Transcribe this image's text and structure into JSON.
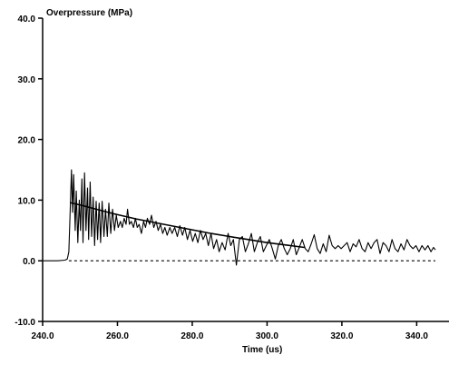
{
  "chart_data": {
    "type": "line",
    "ylabel": "Overpressure (MPa)",
    "xlabel": "Time (us)",
    "xlim": [
      240.0,
      345.0
    ],
    "ylim": [
      -10.0,
      40.0
    ],
    "x_ticks": [
      240.0,
      260.0,
      280.0,
      300.0,
      320.0,
      340.0
    ],
    "x_tick_labels": [
      "240.0",
      "260.0",
      "280.0",
      "300.0",
      "320.0",
      "340.0"
    ],
    "y_ticks": [
      -10.0,
      0.0,
      10.0,
      20.0,
      30.0,
      40.0
    ],
    "y_tick_labels": [
      "-10.0",
      "0.0",
      "10.0",
      "20.0",
      "30.0",
      "40.0"
    ],
    "grid": false,
    "line_color": "#000000",
    "series": [
      {
        "style": "solid-thin",
        "points": [
          [
            240.0,
            0.0
          ],
          [
            244.0,
            0.0
          ],
          [
            246.0,
            0.1
          ],
          [
            246.6,
            0.3
          ],
          [
            247.0,
            1.5
          ],
          [
            247.3,
            7.0
          ],
          [
            247.7,
            15.0
          ],
          [
            248.0,
            8.0
          ],
          [
            248.3,
            14.2
          ],
          [
            248.7,
            5.0
          ],
          [
            249.0,
            11.5
          ],
          [
            249.4,
            3.0
          ],
          [
            249.8,
            10.0
          ],
          [
            250.1,
            5.0
          ],
          [
            250.5,
            13.5
          ],
          [
            250.8,
            3.0
          ],
          [
            251.2,
            14.5
          ],
          [
            251.6,
            5.0
          ],
          [
            252.0,
            12.0
          ],
          [
            252.3,
            3.5
          ],
          [
            252.7,
            13.0
          ],
          [
            253.1,
            4.0
          ],
          [
            253.5,
            10.5
          ],
          [
            253.9,
            2.5
          ],
          [
            254.3,
            9.8
          ],
          [
            254.7,
            3.5
          ],
          [
            255.1,
            9.5
          ],
          [
            255.5,
            3.0
          ],
          [
            255.9,
            9.8
          ],
          [
            256.4,
            4.0
          ],
          [
            256.8,
            8.5
          ],
          [
            257.3,
            4.0
          ],
          [
            257.7,
            9.5
          ],
          [
            258.2,
            4.5
          ],
          [
            258.7,
            8.5
          ],
          [
            259.2,
            5.0
          ],
          [
            259.7,
            7.5
          ],
          [
            260.2,
            5.5
          ],
          [
            260.8,
            6.5
          ],
          [
            261.3,
            5.5
          ],
          [
            261.8,
            7.0
          ],
          [
            262.3,
            6.0
          ],
          [
            262.7,
            8.5
          ],
          [
            263.2,
            6.0
          ],
          [
            263.7,
            6.5
          ],
          [
            264.3,
            5.5
          ],
          [
            264.8,
            7.0
          ],
          [
            265.3,
            5.5
          ],
          [
            265.8,
            6.0
          ],
          [
            266.4,
            4.5
          ],
          [
            267.0,
            6.5
          ],
          [
            267.5,
            5.5
          ],
          [
            268.0,
            7.0
          ],
          [
            268.6,
            6.0
          ],
          [
            269.1,
            7.5
          ],
          [
            269.7,
            5.5
          ],
          [
            270.3,
            6.5
          ],
          [
            270.9,
            5.0
          ],
          [
            271.5,
            6.0
          ],
          [
            272.1,
            4.5
          ],
          [
            272.7,
            5.5
          ],
          [
            273.3,
            4.2
          ],
          [
            274.0,
            5.5
          ],
          [
            274.6,
            4.5
          ],
          [
            275.3,
            5.5
          ],
          [
            276.0,
            4.0
          ],
          [
            276.7,
            5.8
          ],
          [
            277.4,
            4.2
          ],
          [
            278.0,
            5.5
          ],
          [
            278.7,
            3.5
          ],
          [
            279.4,
            5.0
          ],
          [
            280.1,
            3.2
          ],
          [
            280.8,
            4.5
          ],
          [
            281.5,
            3.0
          ],
          [
            282.2,
            5.0
          ],
          [
            282.9,
            3.5
          ],
          [
            283.6,
            4.5
          ],
          [
            284.3,
            2.5
          ],
          [
            285.0,
            4.5
          ],
          [
            285.7,
            2.0
          ],
          [
            286.5,
            3.5
          ],
          [
            287.2,
            1.5
          ],
          [
            288.0,
            3.0
          ],
          [
            288.8,
            1.8
          ],
          [
            289.6,
            4.5
          ],
          [
            290.3,
            2.5
          ],
          [
            291.0,
            3.5
          ],
          [
            291.8,
            -0.7
          ],
          [
            292.6,
            3.5
          ],
          [
            293.4,
            4.0
          ],
          [
            294.2,
            1.5
          ],
          [
            295.0,
            2.8
          ],
          [
            295.8,
            4.5
          ],
          [
            296.6,
            1.5
          ],
          [
            297.4,
            3.0
          ],
          [
            298.2,
            4.0
          ],
          [
            299.0,
            1.5
          ],
          [
            299.8,
            2.5
          ],
          [
            300.6,
            3.5
          ],
          [
            301.4,
            2.0
          ],
          [
            302.2,
            0.3
          ],
          [
            303.0,
            2.5
          ],
          [
            303.8,
            3.5
          ],
          [
            304.6,
            2.0
          ],
          [
            305.4,
            1.0
          ],
          [
            306.2,
            2.0
          ],
          [
            307.0,
            3.5
          ],
          [
            307.8,
            1.0
          ],
          [
            308.6,
            2.2
          ],
          [
            309.4,
            3.5
          ],
          [
            310.2,
            2.0
          ],
          [
            311.0,
            1.5
          ],
          [
            311.8,
            2.8
          ],
          [
            312.6,
            4.3
          ],
          [
            313.4,
            2.0
          ],
          [
            314.2,
            1.2
          ],
          [
            315.0,
            2.8
          ],
          [
            315.8,
            1.5
          ],
          [
            316.6,
            4.2
          ],
          [
            317.4,
            2.5
          ],
          [
            318.2,
            2.0
          ],
          [
            319.0,
            2.5
          ],
          [
            319.8,
            2.0
          ],
          [
            320.6,
            2.5
          ],
          [
            321.4,
            3.0
          ],
          [
            322.2,
            1.5
          ],
          [
            323.0,
            2.8
          ],
          [
            323.8,
            2.3
          ],
          [
            324.6,
            3.5
          ],
          [
            325.4,
            2.0
          ],
          [
            326.2,
            1.5
          ],
          [
            327.0,
            3.0
          ],
          [
            327.8,
            2.0
          ],
          [
            328.6,
            3.0
          ],
          [
            329.4,
            3.5
          ],
          [
            330.2,
            1.2
          ],
          [
            331.0,
            3.0
          ],
          [
            331.8,
            2.5
          ],
          [
            332.6,
            1.5
          ],
          [
            333.4,
            3.5
          ],
          [
            334.2,
            2.0
          ],
          [
            335.0,
            1.5
          ],
          [
            335.8,
            2.8
          ],
          [
            336.6,
            1.8
          ],
          [
            337.4,
            3.5
          ],
          [
            338.2,
            2.5
          ],
          [
            339.0,
            2.0
          ],
          [
            339.8,
            2.5
          ],
          [
            340.6,
            1.5
          ],
          [
            341.4,
            2.5
          ],
          [
            342.2,
            1.8
          ],
          [
            343.0,
            2.5
          ],
          [
            343.8,
            1.5
          ],
          [
            344.5,
            2.2
          ],
          [
            345.0,
            1.8
          ]
        ]
      },
      {
        "style": "solid-thick",
        "points": [
          [
            247.3,
            9.6
          ],
          [
            250.0,
            9.2
          ],
          [
            255.0,
            8.4
          ],
          [
            260.0,
            7.6
          ],
          [
            265.0,
            6.9
          ],
          [
            270.0,
            6.3
          ],
          [
            275.0,
            5.7
          ],
          [
            280.0,
            5.1
          ],
          [
            285.0,
            4.5
          ],
          [
            290.0,
            4.0
          ],
          [
            295.0,
            3.5
          ],
          [
            300.0,
            3.0
          ],
          [
            305.0,
            2.6
          ],
          [
            310.0,
            2.2
          ]
        ]
      },
      {
        "style": "dashed",
        "points": [
          [
            247.0,
            0.0
          ],
          [
            345.0,
            0.0
          ]
        ]
      }
    ]
  }
}
